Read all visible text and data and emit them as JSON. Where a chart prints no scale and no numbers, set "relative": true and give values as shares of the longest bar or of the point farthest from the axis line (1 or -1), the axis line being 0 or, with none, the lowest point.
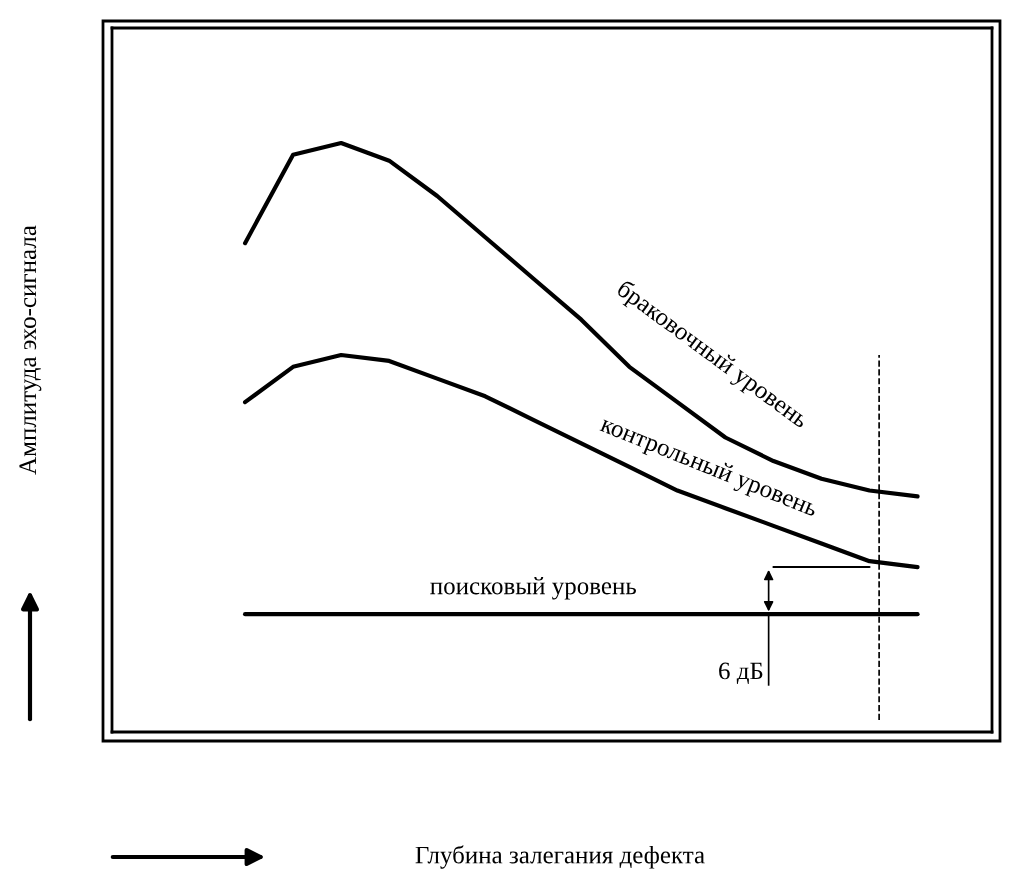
{
  "chart_data": {
    "type": "line",
    "relative": true,
    "xlabel": "Глубина залегания дефекта",
    "categories": [
      null,
      null,
      null,
      null,
      null,
      null,
      null,
      null,
      null,
      null,
      null,
      null,
      null,
      null,
      null
    ],
    "series": [
      {
        "name": "браковочный уровень",
        "color": "#000000",
        "values": [
          0.83,
          0.98,
          1.0,
          0.97,
          0.91,
          0.84,
          0.77,
          0.7,
          0.62,
          0.56,
          0.5,
          0.46,
          0.43,
          0.41,
          0.4
        ]
      },
      {
        "name": "контрольный уровень",
        "color": "#000000",
        "values": [
          0.56,
          0.62,
          0.64,
          0.63,
          0.6,
          0.57,
          0.53,
          0.49,
          0.45,
          0.41,
          0.38,
          0.35,
          0.32,
          0.29,
          0.28
        ]
      },
      {
        "name": "поисковый уровень",
        "color": "#000000",
        "values": [
          0.2,
          0.2,
          0.2,
          0.2,
          0.2,
          0.2,
          0.2,
          0.2,
          0.2,
          0.2,
          0.2,
          0.2,
          0.2,
          0.2,
          0.2
        ]
      },
      {
        "type": "line",
        "color": "#000000",
        "values": [
          null,
          null,
          null,
          null,
          null,
          null,
          null,
          null,
          null,
          null,
          null,
          0.28,
          0.28,
          0.28,
          null
        ]
      }
    ],
    "annotations": [
      "6 дБ",
      "Амплитуда эхо-сигнала"
    ],
    "legend": false,
    "marker": "none",
    "line_style": "solid"
  }
}
